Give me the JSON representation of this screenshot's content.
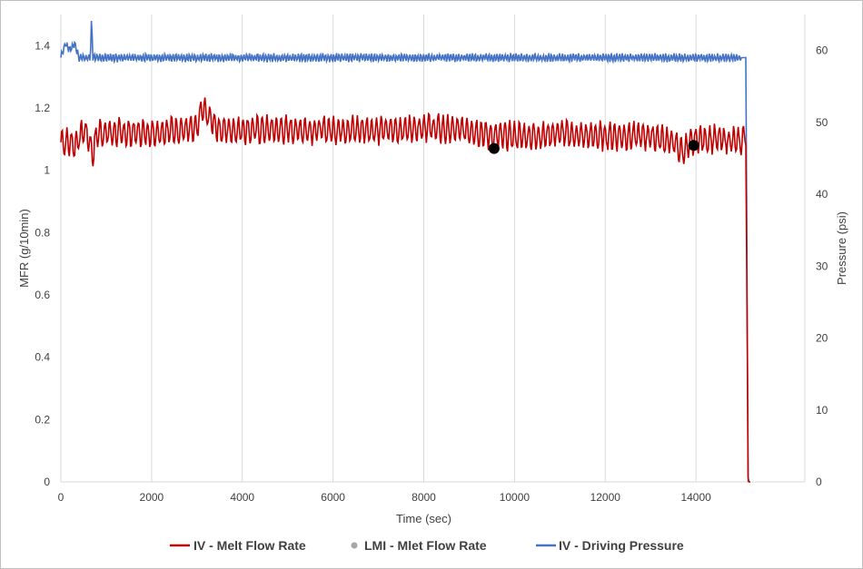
{
  "chart_data": {
    "type": "line",
    "xlabel": "Time (sec)",
    "ylabel": "MFR (g/10min)",
    "y2label": "Pressure (psi)",
    "xlim": [
      0,
      16000
    ],
    "ylim": [
      0,
      1.5
    ],
    "y2lim": [
      0,
      65
    ],
    "xticks": [
      "0",
      "2000",
      "4000",
      "6000",
      "8000",
      "10000",
      "12000",
      "14000"
    ],
    "yticks": [
      "0",
      "0.2",
      "0.4",
      "0.6",
      "0.8",
      "1",
      "1.2",
      "1.4"
    ],
    "y2ticks": [
      "0",
      "10",
      "20",
      "30",
      "40",
      "50",
      "60"
    ],
    "grid": "vertical",
    "legend_position": "bottom",
    "series": [
      {
        "name": "IV - Melt Flow Rate",
        "axis": "left",
        "color": "#c00000",
        "x": [
          0,
          200,
          300,
          400,
          500,
          600,
          700,
          800,
          1000,
          1500,
          2000,
          2500,
          3000,
          3100,
          3500,
          4000,
          5000,
          6000,
          7000,
          7500,
          8000,
          8500,
          9000,
          9500,
          10000,
          10500,
          11000,
          11500,
          12000,
          12500,
          13000,
          13500,
          13700,
          14000,
          14500,
          15000,
          15100,
          15150,
          15200
        ],
        "y": [
          1.09,
          1.09,
          1.08,
          1.1,
          1.13,
          1.11,
          1.05,
          1.12,
          1.12,
          1.12,
          1.12,
          1.13,
          1.13,
          1.2,
          1.13,
          1.13,
          1.13,
          1.13,
          1.13,
          1.13,
          1.14,
          1.13,
          1.13,
          1.11,
          1.11,
          1.11,
          1.12,
          1.11,
          1.11,
          1.11,
          1.11,
          1.09,
          1.06,
          1.1,
          1.1,
          1.09,
          1.12,
          0.0,
          0.0
        ],
        "amplitude": 0.04
      },
      {
        "name": "LMI - Mlet Flow Rate",
        "axis": "left",
        "type": "scatter",
        "color": "#000000",
        "legend_color": "#a6a6a6",
        "x": [
          9550,
          13950
        ],
        "y": [
          1.07,
          1.08
        ]
      },
      {
        "name": "IV - Driving Pressure",
        "axis": "right",
        "color": "#4472c4",
        "x": [
          0,
          100,
          200,
          300,
          400,
          500,
          650,
          680,
          700,
          720,
          800,
          2000,
          4000,
          6000,
          8000,
          10000,
          12000,
          14000,
          15000,
          15100,
          15150
        ],
        "y": [
          59,
          61,
          60,
          61,
          59,
          59,
          59,
          65,
          59,
          59,
          59,
          59,
          59,
          59,
          59,
          59,
          59,
          59,
          59,
          59,
          0
        ],
        "amplitude": 0.5
      }
    ]
  }
}
